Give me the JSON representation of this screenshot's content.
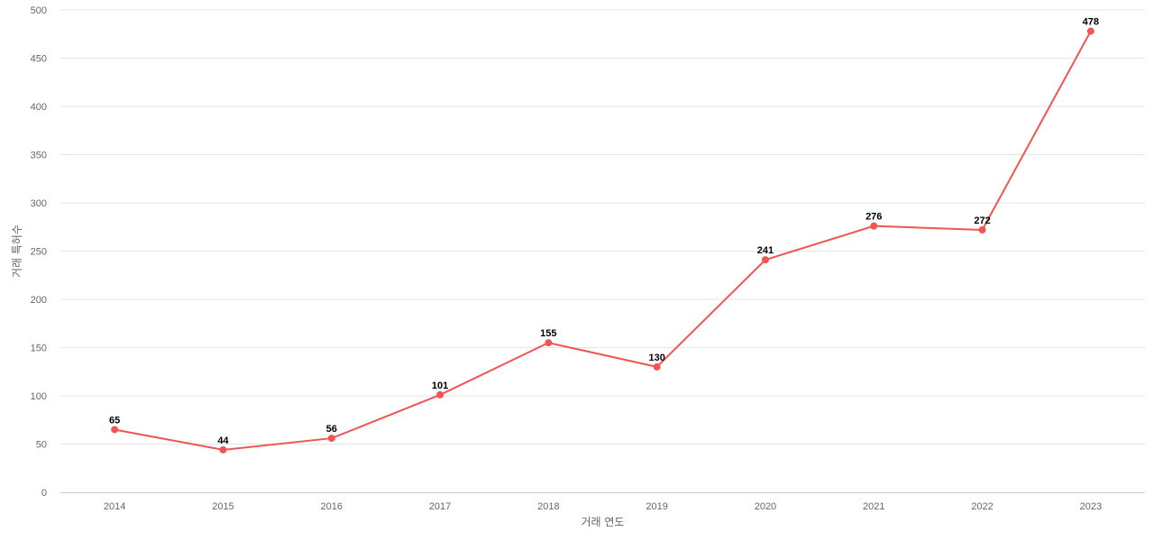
{
  "chart_data": {
    "type": "line",
    "x": [
      "2014",
      "2015",
      "2016",
      "2017",
      "2018",
      "2019",
      "2020",
      "2021",
      "2022",
      "2023"
    ],
    "series": [
      {
        "values": [
          65,
          44,
          56,
          101,
          155,
          130,
          241,
          276,
          272,
          478
        ]
      }
    ],
    "xlabel": "거래 연도",
    "ylabel": "거래 특허수",
    "ylim": [
      0,
      500
    ],
    "yticks": [
      0,
      50,
      100,
      150,
      200,
      250,
      300,
      350,
      400,
      450,
      500
    ],
    "grid": true,
    "data_labels": true,
    "line_color": "#ef5552"
  }
}
